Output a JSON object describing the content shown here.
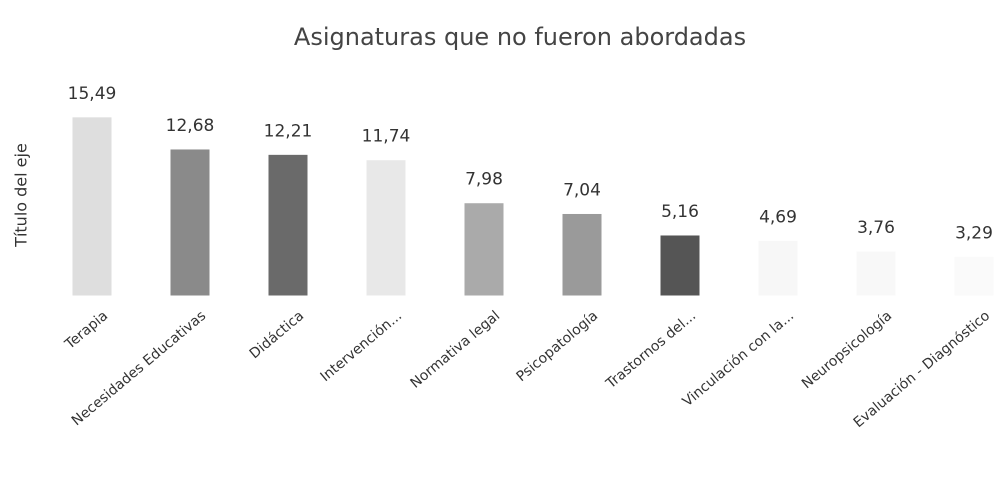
{
  "chart_data": {
    "type": "bar",
    "title": "Asignaturas que no fueron abordadas",
    "y_label": "Título del eje",
    "categories": [
      "Terapia",
      "Necesidades Educativas",
      "Didáctica",
      "Intervención...",
      "Normativa legal",
      "Psicopatología",
      "Trastornos del...",
      "Vinculación con la...",
      "Neuropsicología",
      "Evaluación - Diagnóstico"
    ],
    "values": [
      15.49,
      12.68,
      12.21,
      11.74,
      7.98,
      7.04,
      5.16,
      4.69,
      3.76,
      3.29
    ],
    "value_labels": [
      "15,49",
      "12,68",
      "12,21",
      "11,74",
      "7,98",
      "7,04",
      "5,16",
      "4,69",
      "3,76",
      "3,29"
    ],
    "colors": [
      "#dedede",
      "#8a8a8a",
      "#6a6a6a",
      "#e8e8e8",
      "#aaaaaa",
      "#9a9a9a",
      "#555555",
      "#f7f7f7",
      "#f8f8f8",
      "#fafafa"
    ],
    "ylim": [
      0,
      16
    ]
  }
}
